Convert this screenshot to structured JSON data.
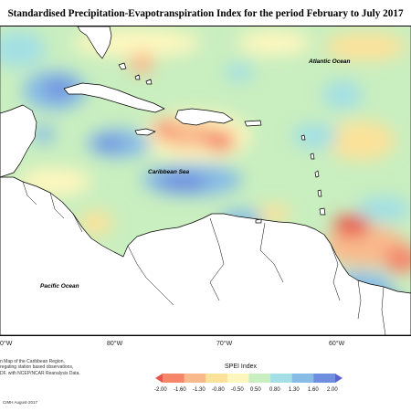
{
  "title": "Standardised Precipitation-Evapotranspiration Index for the period February to July 2017",
  "map": {
    "labels": {
      "atlantic": "Atlantic Ocean",
      "caribbean": "Caribbean Sea",
      "pacific": "Pacific Ocean"
    },
    "lon_labels": [
      "0°W",
      "80°W",
      "70°W",
      "60°W"
    ],
    "ocean_color": "#c9eebf",
    "land_color": "#ffffff"
  },
  "legend": {
    "title": "SPEI Index",
    "ticks": [
      "-2.00",
      "-1.60",
      "-1.30",
      "-0.80",
      "-0.50",
      "0.50",
      "0.80",
      "1.30",
      "1.60",
      "2.00"
    ],
    "colors": [
      "#e8544a",
      "#f5866a",
      "#f9b98c",
      "#fbe29a",
      "#fdf7be",
      "#c9eebf",
      "#a3dfe4",
      "#86bce6",
      "#6f8fde",
      "#5a63cf"
    ]
  },
  "credit": {
    "lines": [
      "n Map of the Caribbean Region.",
      "regating station based observations,",
      "DF, with NCEP/NCAR Reanalysis Data."
    ],
    "org": "CIMH August-2017"
  }
}
